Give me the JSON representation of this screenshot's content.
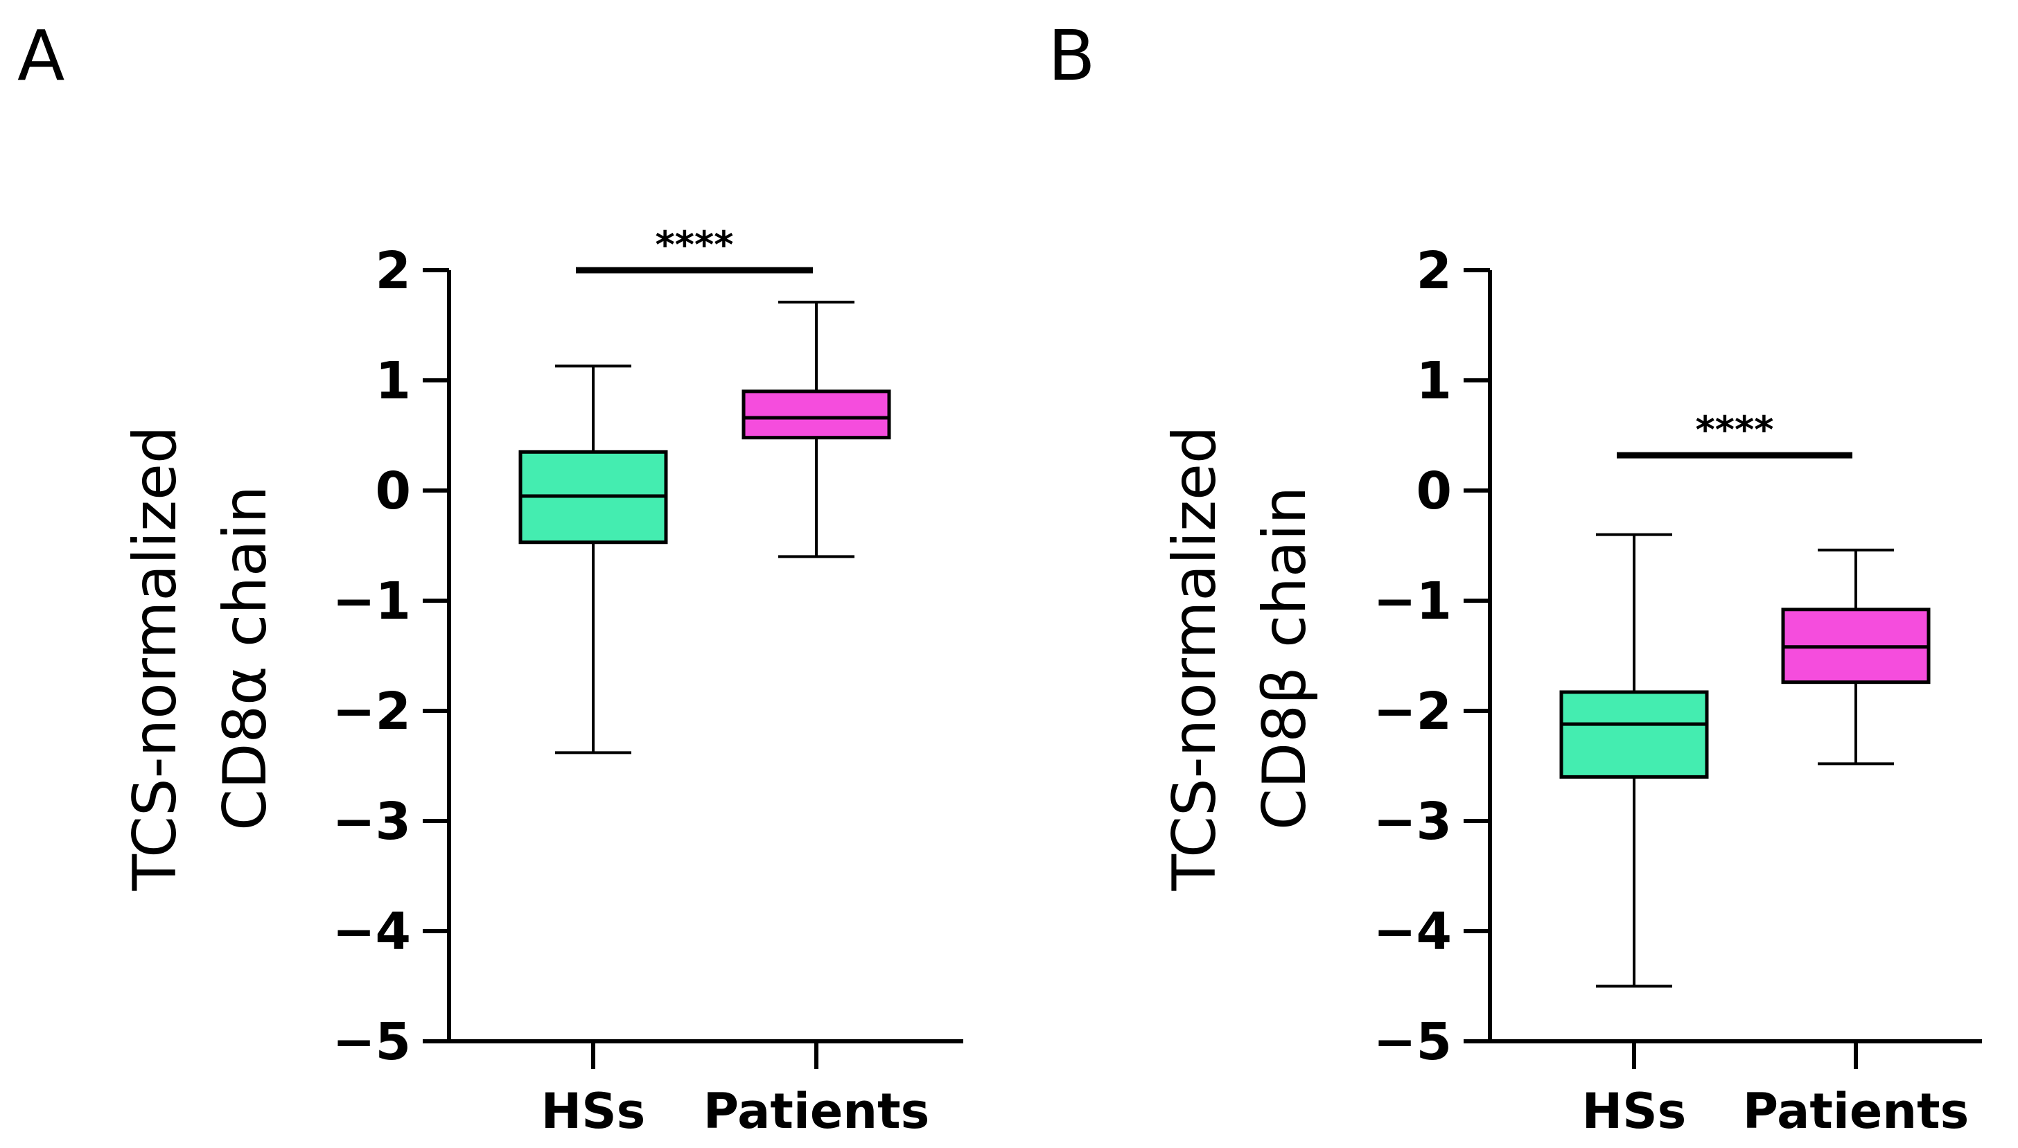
{
  "chart_data": [
    {
      "panel": "A",
      "type": "box",
      "title": "",
      "xlabel": "",
      "ylabel": [
        "TCS-normalized",
        "CD8α chain"
      ],
      "ylim": [
        -5,
        2
      ],
      "yticks": [
        2,
        1,
        0,
        -1,
        -2,
        -3,
        -4,
        -5
      ],
      "ytick_labels": [
        "2",
        "1",
        "0",
        "−1",
        "−2",
        "−3",
        "−4",
        "−5"
      ],
      "categories": [
        "HSs",
        "Patients"
      ],
      "series": [
        {
          "name": "HSs",
          "color": "#44EDB0",
          "min": -2.38,
          "q1": -0.47,
          "median": -0.05,
          "q3": 0.35,
          "max": 1.13
        },
        {
          "name": "Patients",
          "color": "#F54DDD",
          "min": -0.6,
          "q1": 0.48,
          "median": 0.66,
          "q3": 0.9,
          "max": 1.71
        }
      ],
      "significance": {
        "label": "****",
        "y": 2.0
      }
    },
    {
      "panel": "B",
      "type": "box",
      "title": "",
      "xlabel": "",
      "ylabel": [
        "TCS-normalized",
        "CD8β chain"
      ],
      "ylim": [
        -5,
        2
      ],
      "yticks": [
        2,
        1,
        0,
        -1,
        -2,
        -3,
        -4,
        -5
      ],
      "ytick_labels": [
        "2",
        "1",
        "0",
        "−1",
        "−2",
        "−3",
        "−4",
        "−5"
      ],
      "categories": [
        "HSs",
        "Patients"
      ],
      "series": [
        {
          "name": "HSs",
          "color": "#44EDB0",
          "min": -4.5,
          "q1": -2.6,
          "median": -2.12,
          "q3": -1.83,
          "max": -0.4
        },
        {
          "name": "Patients",
          "color": "#F54DDD",
          "min": -2.48,
          "q1": -1.74,
          "median": -1.42,
          "q3": -1.08,
          "max": -0.54
        }
      ],
      "significance": {
        "label": "****",
        "y": 0.32
      }
    }
  ]
}
